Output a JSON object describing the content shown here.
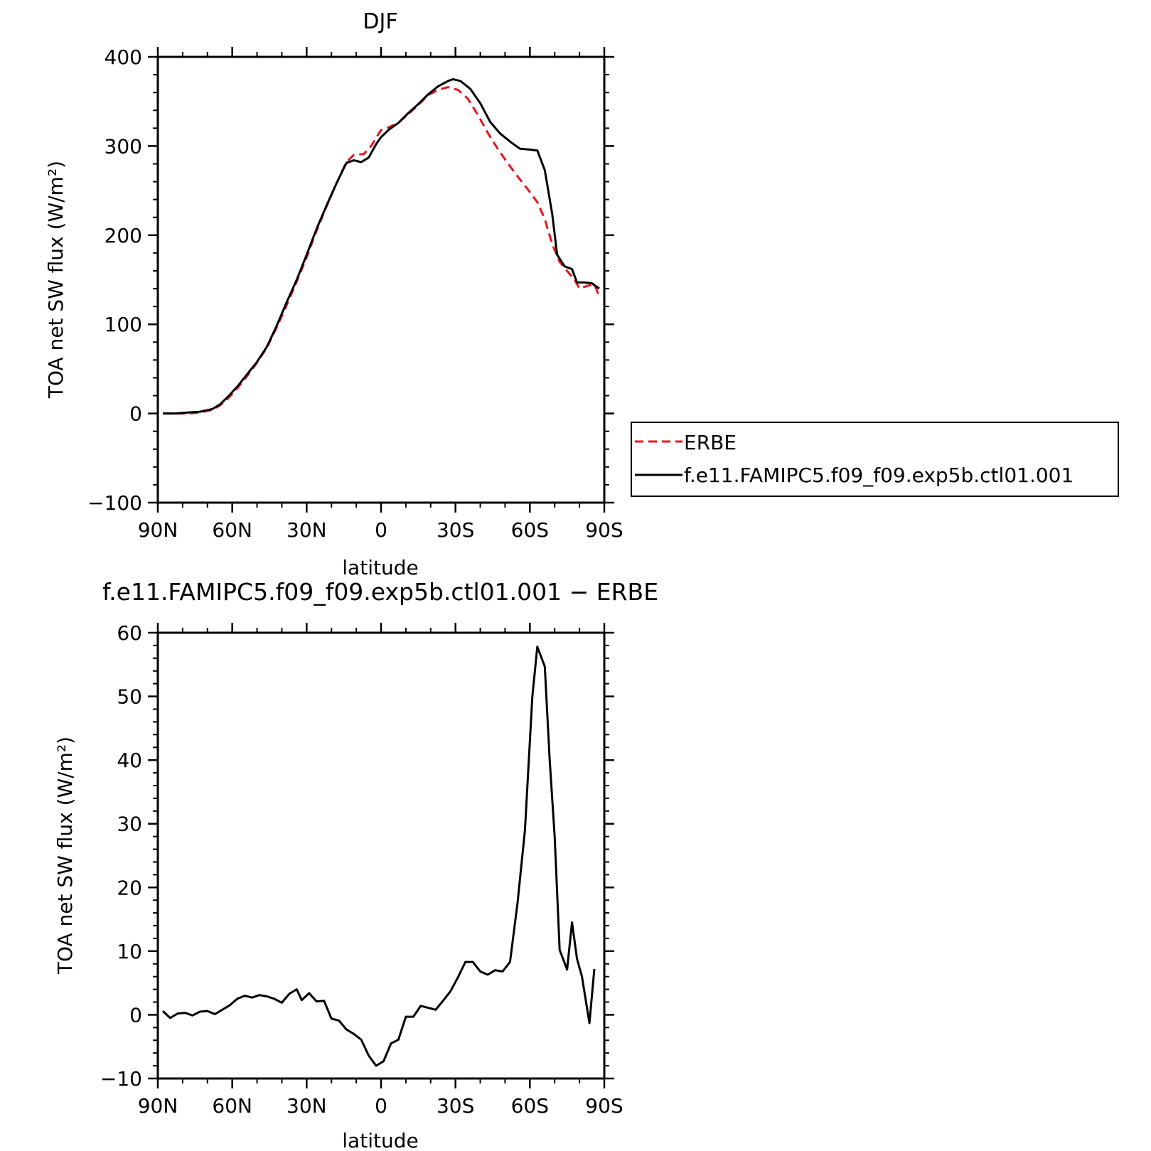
{
  "chart_data": [
    {
      "type": "line",
      "title": "DJF",
      "xlabel": "latitude",
      "ylabel": "TOA net SW flux (W/m²)",
      "ylim": [
        -100,
        400
      ],
      "xlim": [
        90,
        -90
      ],
      "yticks": [
        -100,
        0,
        100,
        200,
        300,
        400
      ],
      "xticks": [
        {
          "value": 90,
          "label": "90N"
        },
        {
          "value": 60,
          "label": "60N"
        },
        {
          "value": 30,
          "label": "30N"
        },
        {
          "value": 0,
          "label": "0"
        },
        {
          "value": -30,
          "label": "30S"
        },
        {
          "value": -60,
          "label": "60S"
        },
        {
          "value": -90,
          "label": "90S"
        }
      ],
      "grid": false,
      "legend": "right",
      "series": [
        {
          "name": "ERBE",
          "color": "#e8141d",
          "dash": "dashed",
          "points": [
            [
              88,
              0
            ],
            [
              83,
              0
            ],
            [
              78,
              0
            ],
            [
              73,
              1
            ],
            [
              68,
              4
            ],
            [
              65,
              9
            ],
            [
              62,
              16
            ],
            [
              58,
              28
            ],
            [
              54,
              42
            ],
            [
              50,
              57
            ],
            [
              46,
              74
            ],
            [
              42,
              97
            ],
            [
              38,
              122
            ],
            [
              34,
              148
            ],
            [
              30,
              175
            ],
            [
              26,
              205
            ],
            [
              22,
              232
            ],
            [
              18,
              258
            ],
            [
              14,
              282
            ],
            [
              11,
              290
            ],
            [
              7,
              291
            ],
            [
              4,
              300
            ],
            [
              0,
              318
            ],
            [
              -3,
              321
            ],
            [
              -7,
              326
            ],
            [
              -11,
              336
            ],
            [
              -15,
              346
            ],
            [
              -19,
              357
            ],
            [
              -23,
              363
            ],
            [
              -27,
              366
            ],
            [
              -31,
              363
            ],
            [
              -35,
              353
            ],
            [
              -39,
              335
            ],
            [
              -43,
              315
            ],
            [
              -47,
              297
            ],
            [
              -51,
              281
            ],
            [
              -55,
              266
            ],
            [
              -59,
              252
            ],
            [
              -63,
              237
            ],
            [
              -66,
              218
            ],
            [
              -69,
              190
            ],
            [
              -72,
              170
            ],
            [
              -75,
              160
            ],
            [
              -78,
              150
            ],
            [
              -80,
              140
            ],
            [
              -83,
              143
            ],
            [
              -86,
              145
            ],
            [
              -88,
              131
            ]
          ]
        },
        {
          "name": "f.e11.FAMIPC5.f09_f09.exp5b.ctl01.001",
          "color": "#000000",
          "dash": "solid",
          "points": [
            [
              88,
              0
            ],
            [
              83,
              0
            ],
            [
              78,
              1
            ],
            [
              73,
              2
            ],
            [
              68,
              5
            ],
            [
              65,
              10
            ],
            [
              62,
              18
            ],
            [
              58,
              30
            ],
            [
              54,
              44
            ],
            [
              50,
              58
            ],
            [
              46,
              75
            ],
            [
              42,
              99
            ],
            [
              38,
              125
            ],
            [
              34,
              150
            ],
            [
              30,
              178
            ],
            [
              26,
              207
            ],
            [
              22,
              233
            ],
            [
              18,
              258
            ],
            [
              14,
              281
            ],
            [
              11,
              284
            ],
            [
              8,
              282
            ],
            [
              5,
              287
            ],
            [
              2,
              302
            ],
            [
              0,
              310
            ],
            [
              -3,
              318
            ],
            [
              -7,
              326
            ],
            [
              -11,
              337
            ],
            [
              -15,
              347
            ],
            [
              -19,
              358
            ],
            [
              -23,
              367
            ],
            [
              -27,
              373
            ],
            [
              -29,
              375
            ],
            [
              -32,
              373
            ],
            [
              -36,
              364
            ],
            [
              -40,
              348
            ],
            [
              -44,
              327
            ],
            [
              -48,
              314
            ],
            [
              -52,
              305
            ],
            [
              -56,
              297
            ],
            [
              -60,
              296
            ],
            [
              -63,
              295
            ],
            [
              -66,
              273
            ],
            [
              -69,
              224
            ],
            [
              -71,
              178
            ],
            [
              -74,
              165
            ],
            [
              -77,
              162
            ],
            [
              -79,
              147
            ],
            [
              -82,
              147
            ],
            [
              -85,
              146
            ],
            [
              -88,
              140
            ]
          ]
        }
      ]
    },
    {
      "type": "line",
      "title": "f.e11.FAMIPC5.f09_f09.exp5b.ctl01.001 − ERBE",
      "xlabel": "latitude",
      "ylabel": "TOA net SW flux (W/m²)",
      "ylim": [
        -10,
        60
      ],
      "xlim": [
        90,
        -90
      ],
      "yticks": [
        -10,
        0,
        10,
        20,
        30,
        40,
        50,
        60
      ],
      "xticks": [
        {
          "value": 90,
          "label": "90N"
        },
        {
          "value": 60,
          "label": "60N"
        },
        {
          "value": 30,
          "label": "30N"
        },
        {
          "value": 0,
          "label": "0"
        },
        {
          "value": -30,
          "label": "30S"
        },
        {
          "value": -60,
          "label": "60S"
        },
        {
          "value": -90,
          "label": "90S"
        }
      ],
      "grid": false,
      "series": [
        {
          "color": "#000000",
          "dash": "solid",
          "points": [
            [
              88,
              0.6
            ],
            [
              85,
              -0.5
            ],
            [
              82,
              0.2
            ],
            [
              79,
              0.3
            ],
            [
              76,
              -0.1
            ],
            [
              73,
              0.5
            ],
            [
              70,
              0.6
            ],
            [
              67,
              0.1
            ],
            [
              64,
              0.8
            ],
            [
              61,
              1.5
            ],
            [
              58,
              2.5
            ],
            [
              55,
              3.0
            ],
            [
              52,
              2.7
            ],
            [
              49,
              3.1
            ],
            [
              46,
              2.9
            ],
            [
              43,
              2.5
            ],
            [
              40,
              1.9
            ],
            [
              37,
              3.3
            ],
            [
              34,
              4.0
            ],
            [
              32,
              2.3
            ],
            [
              29,
              3.4
            ],
            [
              26,
              2.1
            ],
            [
              23,
              2.2
            ],
            [
              20,
              -0.6
            ],
            [
              17,
              -0.9
            ],
            [
              14,
              -2.3
            ],
            [
              11,
              -3.0
            ],
            [
              8,
              -3.9
            ],
            [
              5,
              -6.4
            ],
            [
              2,
              -8.0
            ],
            [
              -1,
              -7.3
            ],
            [
              -4,
              -4.5
            ],
            [
              -7,
              -3.9
            ],
            [
              -10,
              -0.3
            ],
            [
              -13,
              -0.3
            ],
            [
              -16,
              1.4
            ],
            [
              -19,
              1.1
            ],
            [
              -22,
              0.8
            ],
            [
              -25,
              2.2
            ],
            [
              -28,
              3.7
            ],
            [
              -31,
              5.9
            ],
            [
              -34,
              8.3
            ],
            [
              -37,
              8.3
            ],
            [
              -40,
              6.8
            ],
            [
              -43,
              6.3
            ],
            [
              -46,
              7.0
            ],
            [
              -49,
              6.8
            ],
            [
              -52,
              8.3
            ],
            [
              -55,
              17.5
            ],
            [
              -58,
              29.0
            ],
            [
              -61,
              50.0
            ],
            [
              -63,
              57.8
            ],
            [
              -66,
              54.7
            ],
            [
              -68,
              40.0
            ],
            [
              -70,
              28.0
            ],
            [
              -72,
              10.2
            ],
            [
              -75,
              7.1
            ],
            [
              -77,
              14.5
            ],
            [
              -79,
              8.8
            ],
            [
              -81,
              6.0
            ],
            [
              -84,
              -1.3
            ],
            [
              -86,
              7.2
            ]
          ]
        }
      ]
    }
  ]
}
